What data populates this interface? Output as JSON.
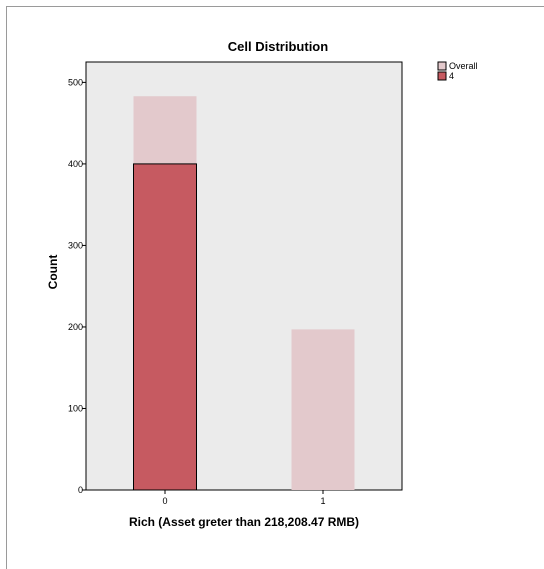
{
  "chart_data": {
    "type": "bar",
    "title": "Cell Distribution",
    "xlabel": "Rich (Asset greter than 218,208.47 RMB)",
    "ylabel": "Count",
    "categories": [
      "0",
      "1"
    ],
    "ylim": [
      0,
      525
    ],
    "yticks": [
      0,
      100,
      200,
      300,
      400,
      500
    ],
    "series": [
      {
        "name": "Overall",
        "values": [
          483,
          197
        ],
        "color": "#e3c9cc"
      },
      {
        "name": "4",
        "values": [
          400,
          0
        ],
        "color": "#c65a61"
      }
    ],
    "legend_position": "top-right",
    "plot_background": "#ebebeb",
    "grid": false
  }
}
